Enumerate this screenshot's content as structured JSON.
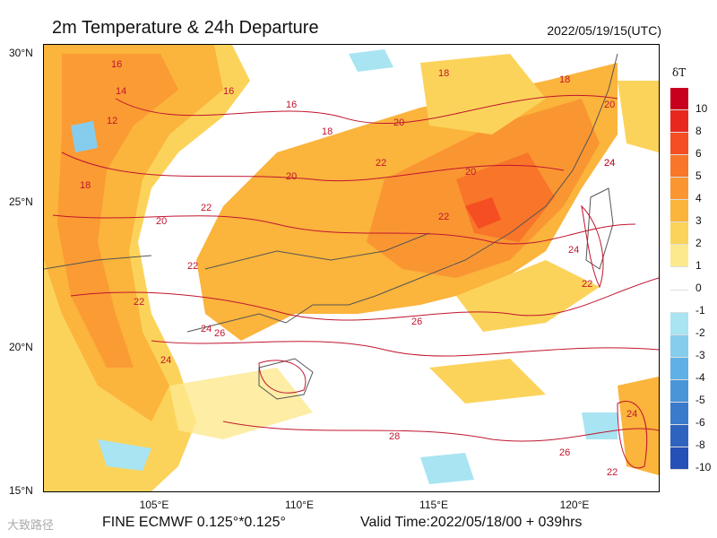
{
  "title": "2m Temperature & 24h Departure",
  "timestamp": "2022/05/19/15(UTC)",
  "footer_left": "FINE ECMWF 0.125°*0.125°",
  "footer_right": "Valid Time:2022/05/18/00 + 039hrs",
  "watermark": "大致路径",
  "map": {
    "lat_labels": [
      "30°N",
      "25°N",
      "20°N",
      "15°N"
    ],
    "lon_labels": [
      "105°E",
      "110°E",
      "115°E",
      "120°E"
    ],
    "contour_labels": [
      "16",
      "14",
      "12",
      "18",
      "16",
      "16",
      "18",
      "20",
      "22",
      "20",
      "18",
      "22",
      "20",
      "22",
      "24",
      "24",
      "22",
      "20",
      "22",
      "24",
      "26",
      "26",
      "28",
      "26",
      "24",
      "22",
      "18",
      "20",
      "24",
      "24",
      "22"
    ],
    "contour_color": "#c0152f"
  },
  "colorbar": {
    "title": "δT",
    "levels": [
      "10",
      "8",
      "6",
      "5",
      "4",
      "3",
      "2",
      "1",
      "0",
      "-1",
      "-2",
      "-3",
      "-4",
      "-5",
      "-6",
      "-8",
      "-10"
    ],
    "colors": [
      "#c8001e",
      "#e8271f",
      "#f44e22",
      "#f8752a",
      "#fa9632",
      "#fbb43c",
      "#fcd35a",
      "#fce98e",
      "#ffffff",
      "#ffffff",
      "#a8e4f2",
      "#86ccec",
      "#5fb0e4",
      "#4a94d8",
      "#3b7bcc",
      "#2f63c0",
      "#2550b6"
    ]
  }
}
